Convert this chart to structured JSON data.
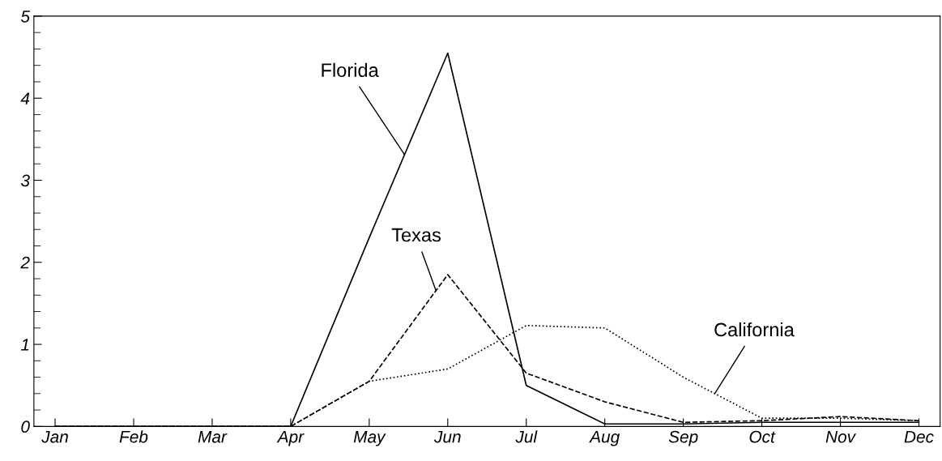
{
  "chart_data": {
    "type": "line",
    "categories": [
      "Jan",
      "Feb",
      "Mar",
      "Apr",
      "May",
      "Jun",
      "Jul",
      "Aug",
      "Sep",
      "Oct",
      "Nov",
      "Dec"
    ],
    "series": [
      {
        "name": "Florida",
        "color": "#000000",
        "line_style": "solid",
        "values": [
          0,
          0,
          0,
          0,
          2.3,
          4.55,
          0.5,
          0.03,
          0.03,
          0.05,
          0.05,
          0.05
        ]
      },
      {
        "name": "Texas",
        "color": "#000000",
        "line_style": "dashed",
        "values": [
          0,
          0,
          0,
          0,
          0.55,
          1.85,
          0.65,
          0.3,
          0.05,
          0.07,
          0.12,
          0.07
        ]
      },
      {
        "name": "California",
        "color": "#000000",
        "line_style": "dotted",
        "values": [
          0,
          0,
          0,
          0,
          0.55,
          0.7,
          1.23,
          1.2,
          0.6,
          0.1,
          0.1,
          0.07
        ]
      }
    ],
    "ylim": [
      0,
      5
    ],
    "yticks": [
      0,
      1,
      2,
      3,
      4,
      5
    ],
    "grid": false,
    "legend": false,
    "marker": "none"
  }
}
